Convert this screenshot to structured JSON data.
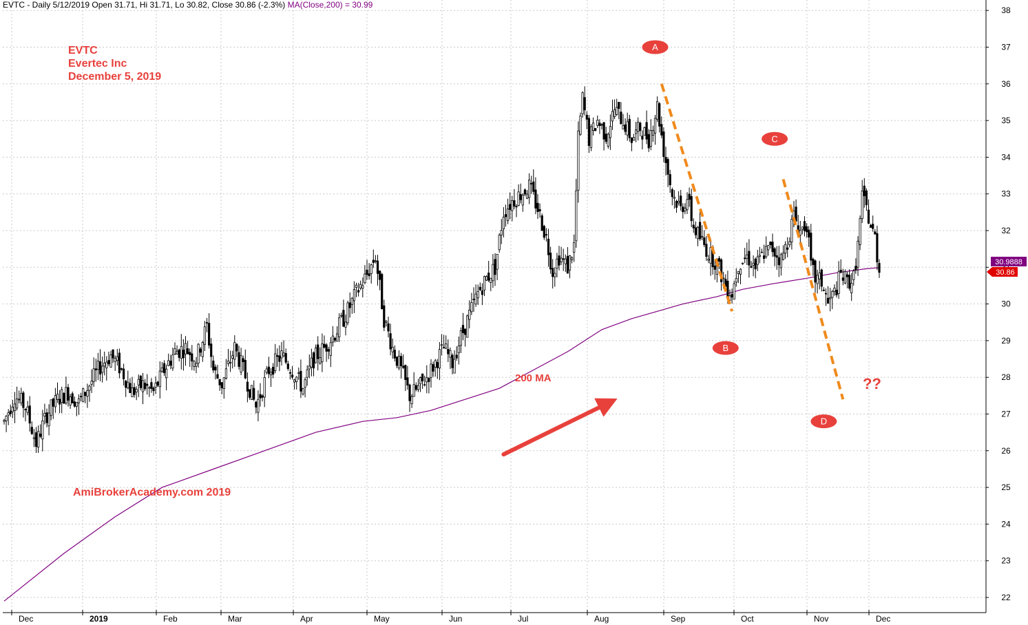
{
  "header": {
    "text": "EVTC - Daily 5/12/2019 Open 31.71, Hi 31.71, Lo 30.82, Close 30.86 (-2.3%)",
    "ma_text": "MA(Close,200) = 30.99"
  },
  "annotations": {
    "ticker": "EVTC",
    "company": "Evertec Inc",
    "date": "December 5, 2019",
    "watermark": "AmiBrokerAcademy.com   2019",
    "ma_label": "200 MA",
    "question": "??",
    "points": [
      "A",
      "B",
      "C",
      "D"
    ]
  },
  "price_tags": {
    "ma_value": "30.9888",
    "close_value": "30.86"
  },
  "colors": {
    "up_candle": "#ffffff",
    "down_candle": "#000000",
    "ma_line": "#800080",
    "annotation_red": "#e8413c",
    "trend_orange": "#f08a1c",
    "grid": "#c8c8c8"
  },
  "chart_data": {
    "type": "candlestick",
    "title": "",
    "xlabel": "",
    "ylabel": "",
    "ylim": [
      21.6,
      38.3
    ],
    "y_ticks": [
      22,
      23,
      24,
      25,
      26,
      27,
      28,
      29,
      30,
      31,
      32,
      33,
      34,
      35,
      36,
      37,
      38
    ],
    "x_months": [
      "Dec",
      "2019",
      "Feb",
      "Mar",
      "Apr",
      "May",
      "Jun",
      "Jul",
      "Aug",
      "Sep",
      "Oct",
      "Nov",
      "Dec"
    ],
    "grid": true,
    "price_anchors": [
      [
        0,
        26.8
      ],
      [
        5,
        27.5
      ],
      [
        10,
        27.2
      ],
      [
        15,
        26.2
      ],
      [
        20,
        27.0
      ],
      [
        25,
        27.4
      ],
      [
        30,
        27.6
      ],
      [
        35,
        27.3
      ],
      [
        40,
        27.8
      ],
      [
        45,
        28.3
      ],
      [
        50,
        28.6
      ],
      [
        55,
        28.2
      ],
      [
        60,
        27.6
      ],
      [
        65,
        27.8
      ],
      [
        70,
        27.6
      ],
      [
        75,
        28.2
      ],
      [
        80,
        28.7
      ],
      [
        85,
        28.8
      ],
      [
        90,
        28.5
      ],
      [
        95,
        29.4
      ],
      [
        98,
        28.2
      ],
      [
        102,
        27.8
      ],
      [
        108,
        28.8
      ],
      [
        112,
        28.2
      ],
      [
        118,
        27.2
      ],
      [
        124,
        28.2
      ],
      [
        130,
        28.6
      ],
      [
        135,
        28.2
      ],
      [
        140,
        27.7
      ],
      [
        145,
        28.5
      ],
      [
        150,
        28.8
      ],
      [
        155,
        29.2
      ],
      [
        160,
        29.7
      ],
      [
        165,
        30.3
      ],
      [
        170,
        30.8
      ],
      [
        174,
        31.3
      ],
      [
        178,
        29.6
      ],
      [
        182,
        28.8
      ],
      [
        186,
        28.2
      ],
      [
        190,
        27.5
      ],
      [
        194,
        27.7
      ],
      [
        198,
        28.0
      ],
      [
        202,
        28.4
      ],
      [
        206,
        28.8
      ],
      [
        210,
        28.4
      ],
      [
        214,
        29.1
      ],
      [
        218,
        29.7
      ],
      [
        222,
        30.3
      ],
      [
        226,
        30.7
      ],
      [
        230,
        31.0
      ],
      [
        234,
        32.5
      ],
      [
        238,
        32.8
      ],
      [
        242,
        33.0
      ],
      [
        246,
        33.2
      ],
      [
        250,
        32.6
      ],
      [
        254,
        31.8
      ],
      [
        257,
        30.9
      ],
      [
        260,
        31.3
      ],
      [
        264,
        31.0
      ],
      [
        267,
        31.6
      ],
      [
        269,
        34.5
      ],
      [
        271,
        35.6
      ],
      [
        274,
        34.5
      ],
      [
        278,
        35.0
      ],
      [
        282,
        34.6
      ],
      [
        286,
        35.3
      ],
      [
        290,
        35.0
      ],
      [
        294,
        34.5
      ],
      [
        298,
        34.8
      ],
      [
        302,
        34.5
      ],
      [
        306,
        35.4
      ],
      [
        309,
        34.2
      ],
      [
        313,
        33.0
      ],
      [
        317,
        32.6
      ],
      [
        320,
        32.9
      ],
      [
        323,
        32.1
      ],
      [
        326,
        31.8
      ],
      [
        330,
        31.4
      ],
      [
        334,
        31.1
      ],
      [
        338,
        30.5
      ],
      [
        341,
        30.3
      ],
      [
        344,
        31.1
      ],
      [
        348,
        31.3
      ],
      [
        352,
        31.0
      ],
      [
        356,
        31.4
      ],
      [
        360,
        31.5
      ],
      [
        364,
        31.2
      ],
      [
        367,
        31.7
      ],
      [
        370,
        32.4
      ],
      [
        373,
        32.0
      ],
      [
        376,
        32.2
      ],
      [
        378,
        31.0
      ],
      [
        380,
        30.7
      ],
      [
        383,
        30.6
      ],
      [
        386,
        30.0
      ],
      [
        389,
        30.3
      ],
      [
        392,
        30.8
      ],
      [
        395,
        30.6
      ],
      [
        398,
        30.7
      ],
      [
        400,
        31.6
      ],
      [
        402,
        32.9
      ],
      [
        404,
        32.6
      ],
      [
        406,
        32.1
      ],
      [
        408,
        31.8
      ],
      [
        410,
        30.86
      ]
    ],
    "ma200": [
      [
        0,
        21.9
      ],
      [
        28,
        23.2
      ],
      [
        52,
        24.2
      ],
      [
        74,
        25.0
      ],
      [
        98,
        25.5
      ],
      [
        122,
        26.0
      ],
      [
        146,
        26.5
      ],
      [
        168,
        26.8
      ],
      [
        184,
        26.9
      ],
      [
        200,
        27.1
      ],
      [
        216,
        27.4
      ],
      [
        232,
        27.7
      ],
      [
        248,
        28.2
      ],
      [
        264,
        28.7
      ],
      [
        280,
        29.3
      ],
      [
        294,
        29.6
      ],
      [
        306,
        29.8
      ],
      [
        318,
        30.0
      ],
      [
        334,
        30.2
      ],
      [
        346,
        30.4
      ],
      [
        360,
        30.55
      ],
      [
        376,
        30.7
      ],
      [
        390,
        30.85
      ],
      [
        404,
        30.96
      ],
      [
        410,
        30.99
      ]
    ],
    "trend_lines": [
      [
        [
          308,
          36.0
        ],
        [
          341,
          29.8
        ]
      ],
      [
        [
          365,
          33.4
        ],
        [
          393,
          27.4
        ]
      ]
    ],
    "arrow": [
      [
        234,
        25.9
      ],
      [
        283,
        27.3
      ]
    ],
    "point_labels": [
      {
        "label": "A",
        "x": 305,
        "y": 37.0
      },
      {
        "label": "B",
        "x": 338,
        "y": 28.8
      },
      {
        "label": "C",
        "x": 361,
        "y": 34.5
      },
      {
        "label": "D",
        "x": 384,
        "y": 26.8
      }
    ]
  }
}
